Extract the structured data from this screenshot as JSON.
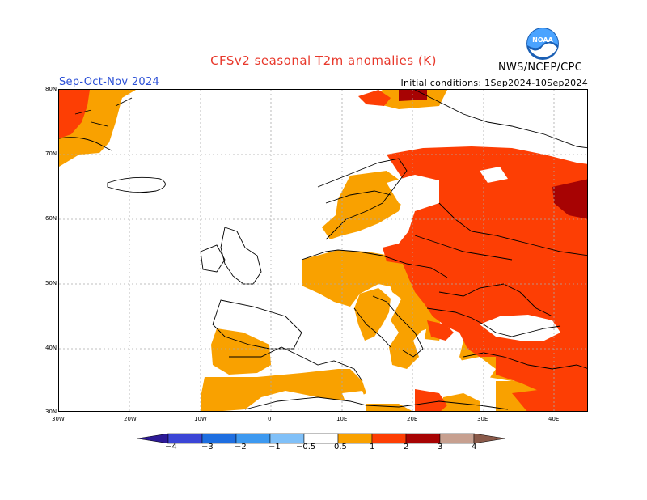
{
  "header": {
    "title": "CFSv2 seasonal T2m anomalies (K)",
    "period": "Sep-Oct-Nov 2024",
    "initial_conditions": "Initial conditions: 1Sep2024-10Sep2024",
    "org": "NWS/NCEP/CPC",
    "logo_text": "NOAA"
  },
  "map": {
    "region": "Europe",
    "lat_labels": [
      "80N",
      "70N",
      "60N",
      "50N",
      "40N",
      "30N"
    ],
    "lon_labels": [
      "30W",
      "20W",
      "10W",
      "0",
      "10E",
      "20E",
      "30E",
      "40E"
    ],
    "colors": {
      "anom_0_5_1": "#f9a100",
      "anom_1_2": "#fd3e04",
      "anom_2_3": "#a70303",
      "land_outline": "#000000",
      "grid": "#aaaaaa"
    }
  },
  "legend": {
    "labels": [
      "−4",
      "−3",
      "−2",
      "−1",
      "−0.5",
      "0.5",
      "1",
      "2",
      "3",
      "4"
    ],
    "colors": [
      "#2d1a97",
      "#3b45d6",
      "#1e6ee0",
      "#3d99f0",
      "#80c0f8",
      "#ffffff",
      "#f9a100",
      "#fd3e04",
      "#a70303",
      "#c7a090",
      "#8a5a4a"
    ]
  }
}
